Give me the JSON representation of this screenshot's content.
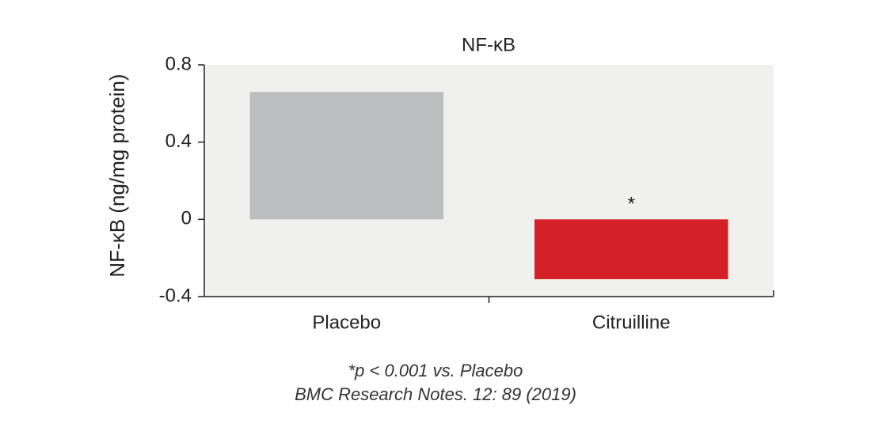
{
  "chart_data": {
    "type": "bar",
    "title": "NF-κB",
    "y_label": "NF-κB (ng/mg protein)",
    "categories": [
      "Placebo",
      "Citruilline"
    ],
    "values": [
      0.66,
      -0.31
    ],
    "colors": [
      "#bcbdbf",
      "#d42027"
    ],
    "ylim": [
      -0.4,
      0.8
    ],
    "yticks": [
      0.8,
      0.4,
      0,
      -0.4
    ],
    "plot_background": "#f0f0ef",
    "annotation": {
      "text": "*",
      "category": "Citruilline"
    },
    "notes": [
      "*p < 0.001 vs. Placebo",
      "BMC Research Notes. 12: 89 (2019)"
    ]
  }
}
